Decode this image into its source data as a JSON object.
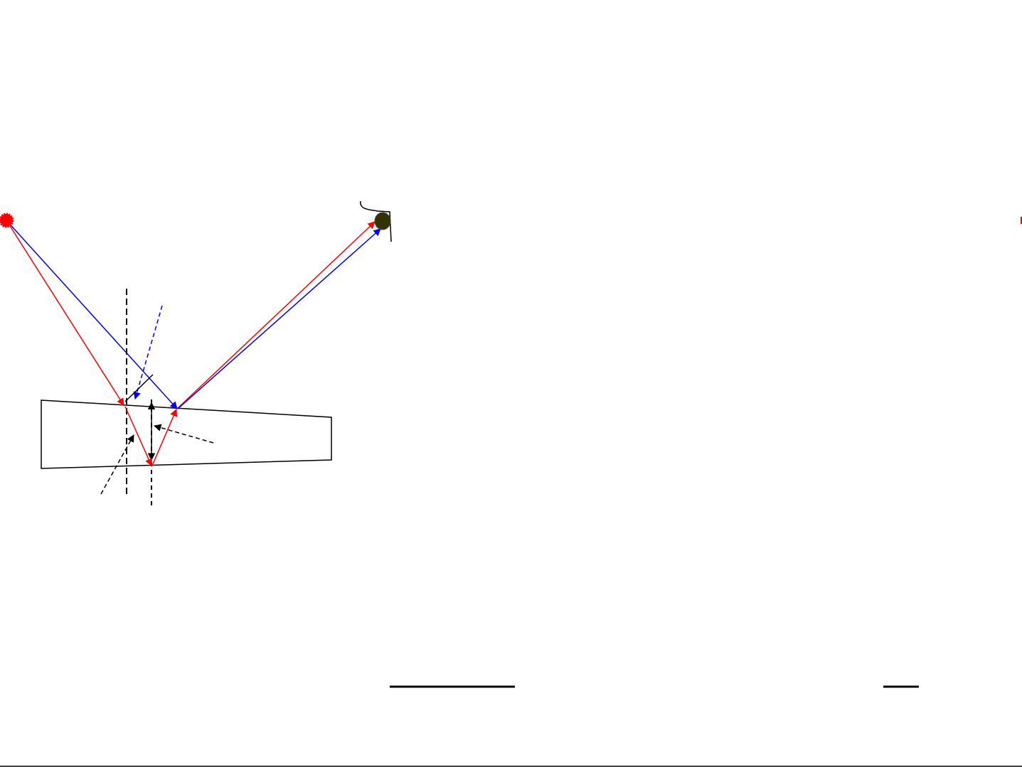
{
  "colors": {
    "ray_red": "#ff0000",
    "ray_blue": "#0000ff",
    "outline": "#000000",
    "eye": "#333300",
    "source": "#ff0000"
  },
  "icons": {
    "source": "starburst-light-source",
    "observer": "eye"
  }
}
